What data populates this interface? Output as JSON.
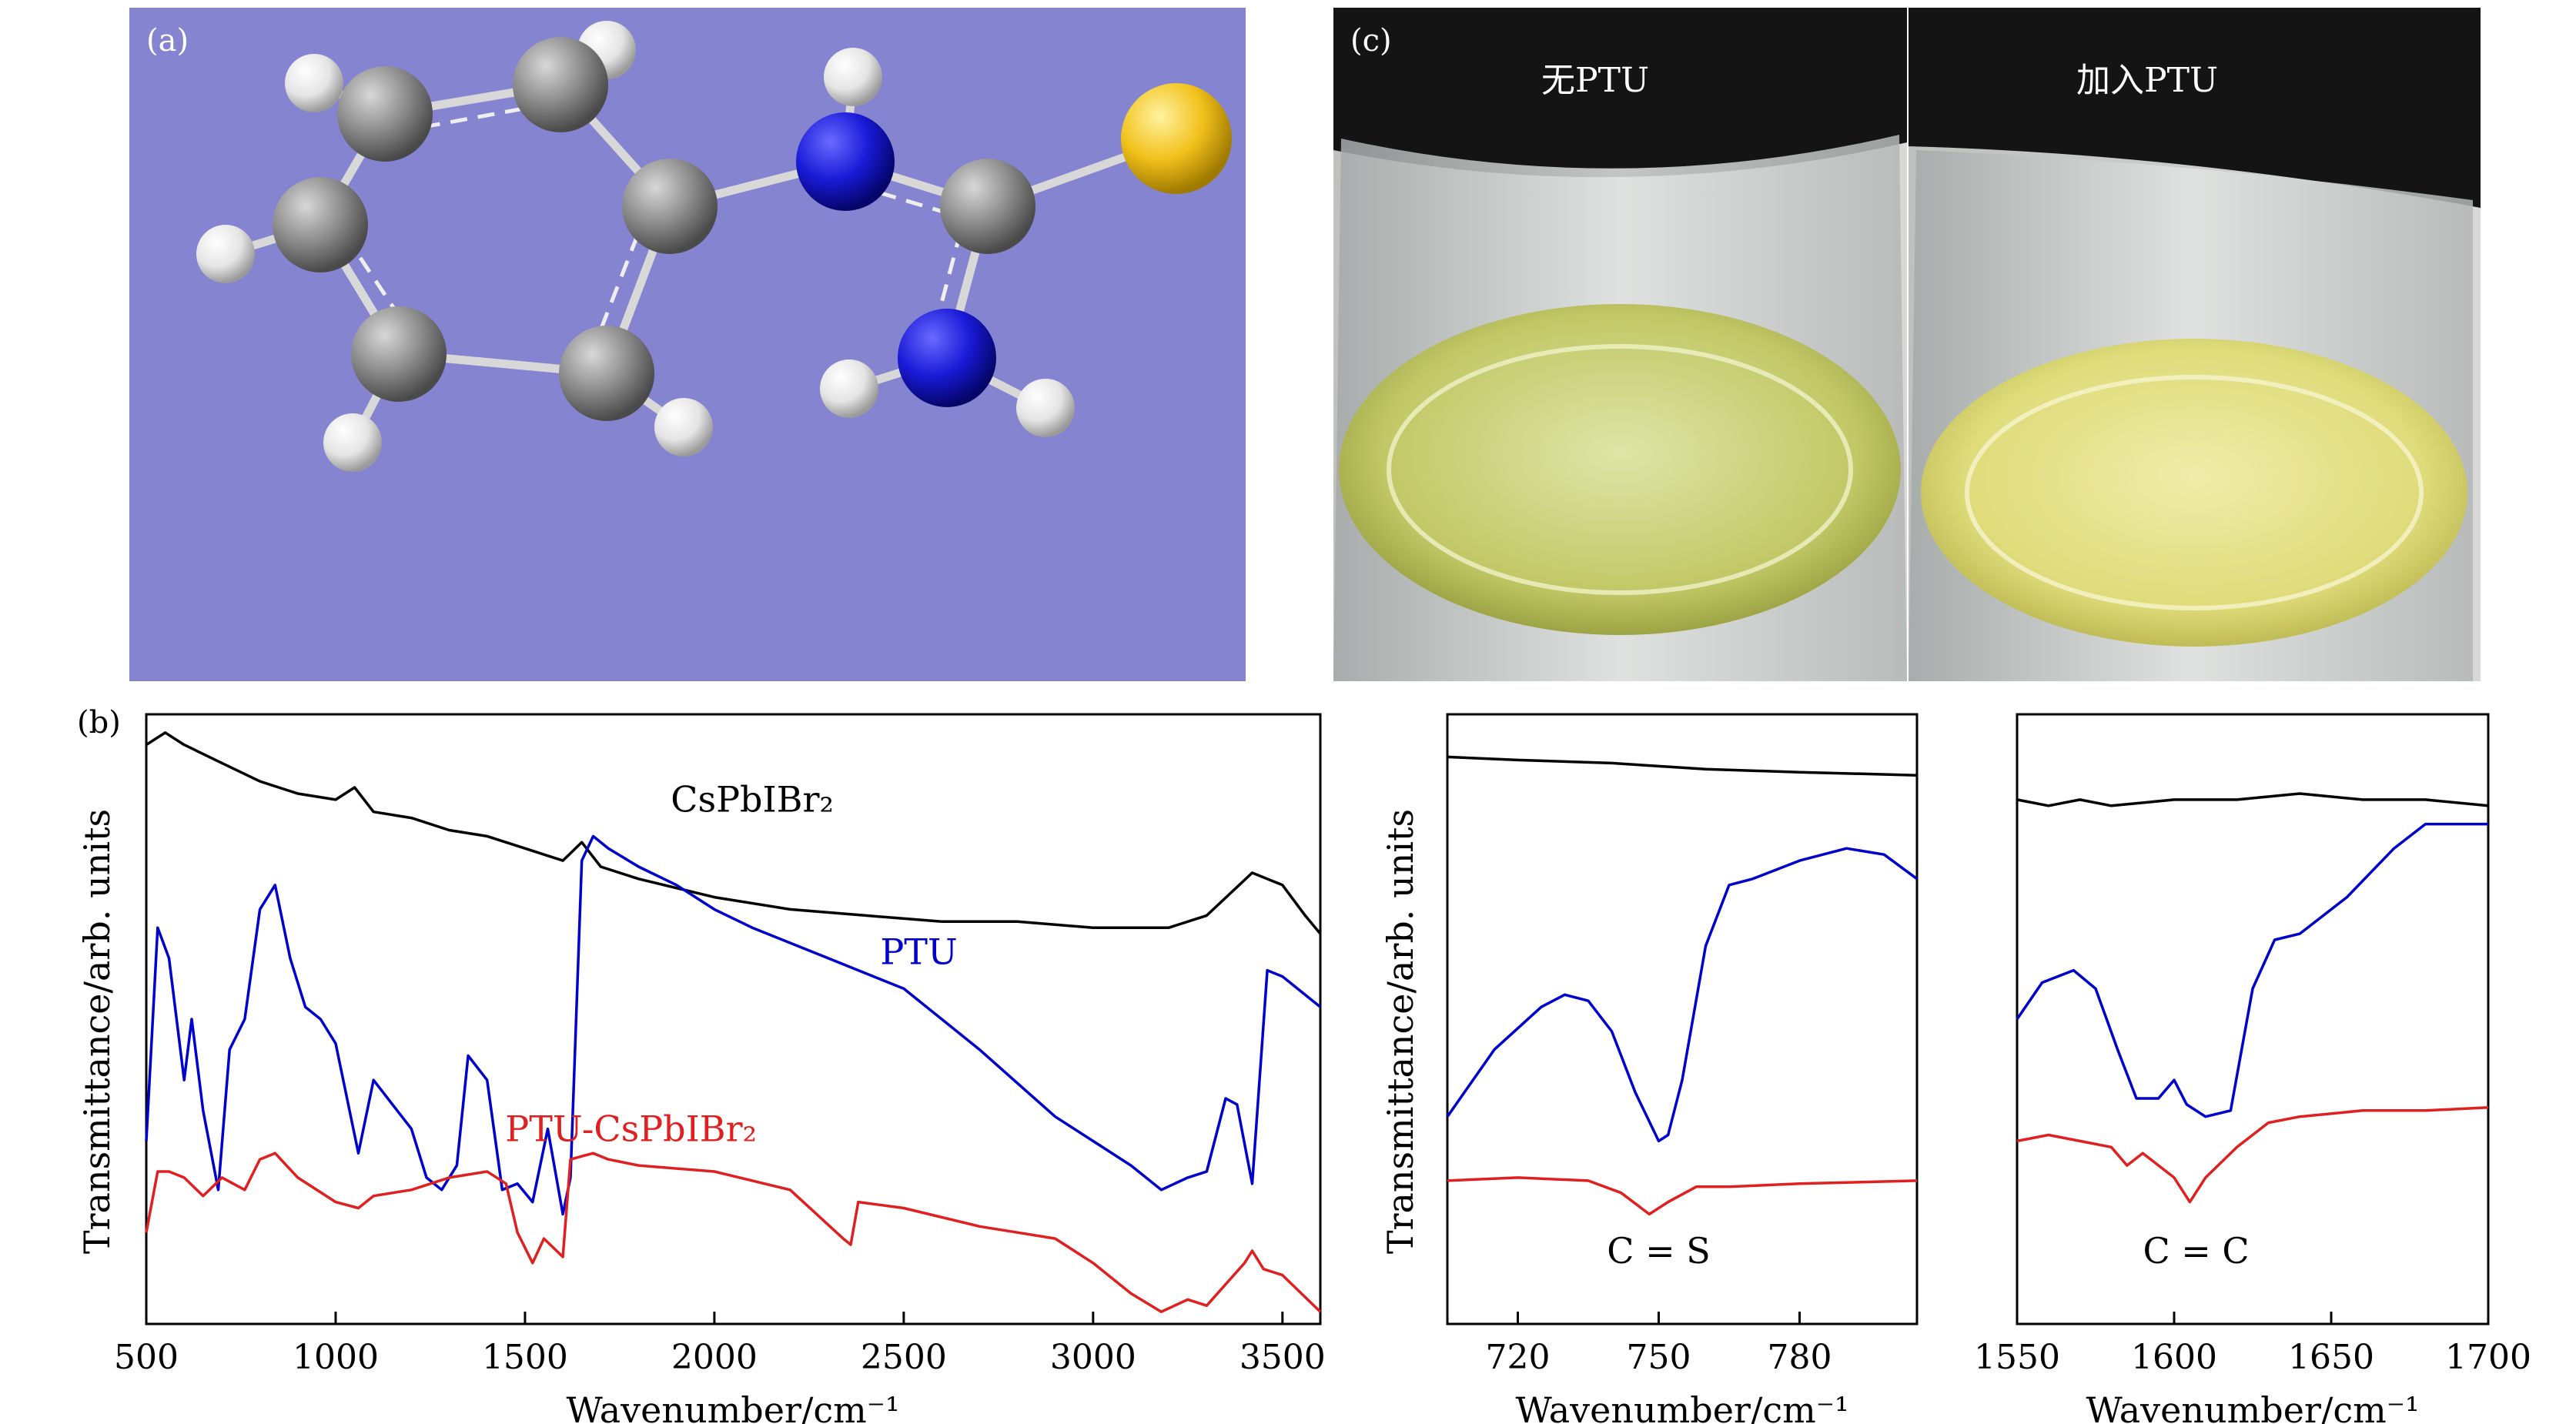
{
  "panel_a": {
    "label": "(a)",
    "colors": {
      "background": "#8484d0",
      "carbon": "#8c8c8c",
      "nitrogen": "#1a1ad8",
      "sulfur": "#f2c21c",
      "hydrogen": "#f2f2f2",
      "bond": "#d8d8d8"
    }
  },
  "panel_c": {
    "label": "(c)",
    "left_title": "无PTU",
    "right_title": "加入PTU"
  },
  "panel_b_label": "(b)",
  "chart_data": [
    {
      "type": "line",
      "xlabel": "Wavenumber/cm⁻¹",
      "ylabel": "Transmittance/arb. units",
      "xlim": [
        500,
        3600
      ],
      "xticks": [
        "500",
        "1000",
        "1500",
        "2000",
        "2500",
        "3000",
        "3500"
      ],
      "yticks": "none",
      "series": [
        {
          "name": "CsPbIBr₂",
          "color": "#000000",
          "x": [
            500,
            550,
            600,
            700,
            800,
            900,
            1000,
            1050,
            1100,
            1200,
            1300,
            1400,
            1500,
            1600,
            1650,
            1700,
            1800,
            2000,
            2200,
            2400,
            2600,
            2800,
            3000,
            3100,
            3200,
            3300,
            3420,
            3500,
            3560,
            3600
          ],
          "y": [
            0.95,
            0.97,
            0.95,
            0.92,
            0.89,
            0.87,
            0.86,
            0.88,
            0.84,
            0.83,
            0.81,
            0.8,
            0.78,
            0.76,
            0.79,
            0.75,
            0.73,
            0.7,
            0.68,
            0.67,
            0.66,
            0.66,
            0.65,
            0.65,
            0.65,
            0.67,
            0.74,
            0.72,
            0.67,
            0.64
          ]
        },
        {
          "name": "PTU",
          "color": "#0000cc",
          "x": [
            500,
            530,
            560,
            600,
            620,
            650,
            690,
            720,
            760,
            800,
            840,
            880,
            920,
            960,
            1000,
            1060,
            1100,
            1150,
            1200,
            1240,
            1280,
            1320,
            1350,
            1400,
            1440,
            1480,
            1520,
            1560,
            1600,
            1620,
            1650,
            1680,
            1720,
            1800,
            1900,
            2000,
            2100,
            2300,
            2500,
            2700,
            2900,
            3000,
            3100,
            3180,
            3250,
            3300,
            3350,
            3380,
            3420,
            3460,
            3500,
            3600
          ],
          "y": [
            0.3,
            0.65,
            0.6,
            0.4,
            0.5,
            0.35,
            0.22,
            0.45,
            0.5,
            0.68,
            0.72,
            0.6,
            0.52,
            0.5,
            0.46,
            0.28,
            0.4,
            0.36,
            0.32,
            0.24,
            0.22,
            0.26,
            0.44,
            0.4,
            0.22,
            0.23,
            0.2,
            0.32,
            0.18,
            0.24,
            0.76,
            0.8,
            0.78,
            0.75,
            0.72,
            0.68,
            0.65,
            0.6,
            0.55,
            0.45,
            0.34,
            0.3,
            0.26,
            0.22,
            0.24,
            0.25,
            0.37,
            0.36,
            0.23,
            0.58,
            0.57,
            0.52
          ]
        },
        {
          "name": "PTU-CsPbIBr₂",
          "color": "#e02020",
          "x": [
            500,
            530,
            560,
            600,
            650,
            700,
            760,
            800,
            840,
            900,
            1000,
            1060,
            1100,
            1200,
            1300,
            1400,
            1450,
            1480,
            1520,
            1550,
            1600,
            1620,
            1680,
            1720,
            1800,
            2000,
            2200,
            2340,
            2360,
            2380,
            2500,
            2700,
            2800,
            2900,
            3000,
            3100,
            3180,
            3250,
            3300,
            3400,
            3420,
            3450,
            3500,
            3600
          ],
          "y": [
            0.15,
            0.25,
            0.25,
            0.24,
            0.21,
            0.24,
            0.22,
            0.27,
            0.28,
            0.24,
            0.2,
            0.19,
            0.21,
            0.22,
            0.24,
            0.25,
            0.23,
            0.15,
            0.1,
            0.14,
            0.11,
            0.27,
            0.28,
            0.27,
            0.26,
            0.25,
            0.22,
            0.14,
            0.13,
            0.2,
            0.19,
            0.16,
            0.15,
            0.14,
            0.1,
            0.05,
            0.02,
            0.04,
            0.03,
            0.1,
            0.12,
            0.09,
            0.08,
            0.02
          ]
        }
      ],
      "annotations": [
        {
          "text": "CsPbIBr₂",
          "x": 2100,
          "y": 0.84,
          "color": "#000000"
        },
        {
          "text": "PTU",
          "x": 2540,
          "y": 0.59,
          "color": "#0000cc"
        },
        {
          "text": "PTU-CsPbIBr₂",
          "x": 1780,
          "y": 0.3,
          "color": "#e02020"
        }
      ]
    },
    {
      "type": "line",
      "xlabel": "Wavenumber/cm⁻¹",
      "ylabel": "Transmittance/arb. units",
      "xlim": [
        705,
        805
      ],
      "xticks": [
        "720",
        "750",
        "780"
      ],
      "xtick_values": [
        720,
        750,
        780
      ],
      "yticks": "none",
      "series": [
        {
          "color": "#000000",
          "x": [
            705,
            720,
            740,
            760,
            780,
            805
          ],
          "y": [
            0.93,
            0.925,
            0.92,
            0.91,
            0.905,
            0.9
          ]
        },
        {
          "color": "#0000cc",
          "x": [
            705,
            715,
            725,
            730,
            735,
            740,
            745,
            750,
            752,
            755,
            760,
            765,
            770,
            780,
            790,
            798,
            805
          ],
          "y": [
            0.34,
            0.45,
            0.52,
            0.54,
            0.53,
            0.48,
            0.38,
            0.3,
            0.31,
            0.4,
            0.62,
            0.72,
            0.73,
            0.76,
            0.78,
            0.77,
            0.73
          ]
        },
        {
          "color": "#e02020",
          "x": [
            705,
            720,
            735,
            742,
            748,
            752,
            758,
            765,
            780,
            805
          ],
          "y": [
            0.235,
            0.24,
            0.235,
            0.215,
            0.18,
            0.2,
            0.225,
            0.225,
            0.23,
            0.235
          ]
        }
      ],
      "annotations": [
        {
          "text": "C = S",
          "x": 750,
          "y": 0.1,
          "color": "#000000"
        }
      ]
    },
    {
      "type": "line",
      "xlabel": "Wavenumber/cm⁻¹",
      "xlim": [
        1550,
        1700
      ],
      "xticks": [
        "1550",
        "1600",
        "1650",
        "1700"
      ],
      "xtick_values": [
        1550,
        1600,
        1650,
        1700
      ],
      "yticks": "none",
      "series": [
        {
          "color": "#000000",
          "x": [
            1550,
            1560,
            1570,
            1580,
            1600,
            1620,
            1640,
            1660,
            1680,
            1700
          ],
          "y": [
            0.86,
            0.85,
            0.86,
            0.85,
            0.86,
            0.86,
            0.87,
            0.86,
            0.86,
            0.85
          ]
        },
        {
          "color": "#0000cc",
          "x": [
            1550,
            1558,
            1568,
            1575,
            1582,
            1588,
            1595,
            1600,
            1604,
            1610,
            1618,
            1625,
            1632,
            1640,
            1655,
            1670,
            1680,
            1700
          ],
          "y": [
            0.5,
            0.56,
            0.58,
            0.55,
            0.45,
            0.37,
            0.37,
            0.4,
            0.36,
            0.34,
            0.35,
            0.55,
            0.63,
            0.64,
            0.7,
            0.78,
            0.82,
            0.82
          ]
        },
        {
          "color": "#e02020",
          "x": [
            1550,
            1560,
            1570,
            1580,
            1585,
            1590,
            1600,
            1605,
            1610,
            1620,
            1630,
            1640,
            1660,
            1680,
            1700
          ],
          "y": [
            0.3,
            0.31,
            0.3,
            0.29,
            0.26,
            0.28,
            0.24,
            0.2,
            0.24,
            0.29,
            0.33,
            0.34,
            0.35,
            0.35,
            0.355
          ]
        }
      ],
      "annotations": [
        {
          "text": "C = C",
          "x": 1607,
          "y": 0.1,
          "color": "#000000"
        }
      ]
    }
  ]
}
